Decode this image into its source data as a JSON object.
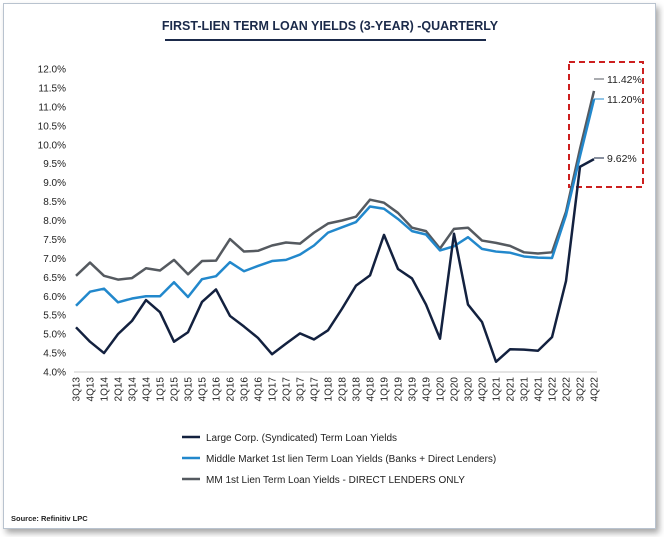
{
  "chart_data": {
    "type": "line",
    "title": "FIRST-LIEN TERM LOAN YIELDS (3-YEAR) -QUARTERLY",
    "source": "Source: Refinitiv LPC",
    "ylim": [
      4.0,
      12.0
    ],
    "yticks": [
      "4.0%",
      "4.5%",
      "5.0%",
      "5.5%",
      "6.0%",
      "6.5%",
      "7.0%",
      "7.5%",
      "8.0%",
      "8.5%",
      "9.0%",
      "9.5%",
      "10.0%",
      "10.5%",
      "11.0%",
      "11.5%",
      "12.0%"
    ],
    "categories": [
      "3Q13",
      "4Q13",
      "1Q14",
      "2Q14",
      "3Q14",
      "4Q14",
      "1Q15",
      "2Q15",
      "3Q15",
      "4Q15",
      "1Q16",
      "2Q16",
      "3Q16",
      "4Q16",
      "1Q17",
      "2Q17",
      "3Q17",
      "4Q17",
      "1Q18",
      "2Q18",
      "3Q18",
      "4Q18",
      "1Q19",
      "2Q19",
      "3Q19",
      "4Q19",
      "1Q20",
      "2Q20",
      "3Q20",
      "4Q20",
      "1Q21",
      "2Q21",
      "3Q21",
      "4Q21",
      "1Q22",
      "2Q22",
      "3Q22",
      "4Q22"
    ],
    "xtick_labels": [
      "3Q13",
      "4Q13",
      "1Q14",
      "2Q14",
      "3Q14",
      "4Q14",
      "1Q15",
      "2Q15",
      "3Q15",
      "4Q15",
      "1Q16",
      "2Q16",
      "3Q16",
      "4Q16",
      "1Q17",
      "2Q17",
      "3Q17",
      "4Q17",
      "1Q18",
      "2Q18",
      "3Q18",
      "4Q18",
      "1Q19",
      "2Q19",
      "3Q19",
      "4Q19",
      "1Q20",
      "2Q20",
      "3Q20",
      "4Q20",
      "1Q21",
      "2Q21",
      "3Q21",
      "4Q21",
      "1Q22",
      "2Q22",
      "3Q22",
      "4Q22"
    ],
    "series": [
      {
        "name": "Large Corp. (Syndicated) Term Loan Yields",
        "color": "#13213f",
        "values": [
          5.18,
          4.8,
          4.5,
          5.0,
          5.35,
          5.9,
          5.58,
          4.8,
          5.05,
          5.85,
          6.18,
          5.48,
          5.2,
          4.9,
          4.47,
          4.75,
          5.02,
          4.86,
          5.1,
          5.67,
          6.28,
          6.55,
          7.62,
          6.72,
          6.47,
          5.78,
          4.88,
          7.65,
          5.78,
          5.32,
          4.27,
          4.6,
          4.59,
          4.56,
          4.92,
          6.4,
          9.42,
          9.62
        ]
      },
      {
        "name": "Middle Market 1st lien Term Loan Yields (Banks + Direct Lenders)",
        "color": "#2288cc",
        "values": [
          5.75,
          6.12,
          6.2,
          5.84,
          5.94,
          6.0,
          6.0,
          6.37,
          5.98,
          6.45,
          6.53,
          6.9,
          6.66,
          6.8,
          6.93,
          6.96,
          7.1,
          7.34,
          7.68,
          7.82,
          7.96,
          8.37,
          8.31,
          8.04,
          7.72,
          7.63,
          7.21,
          7.32,
          7.56,
          7.25,
          7.18,
          7.15,
          7.05,
          7.02,
          7.01,
          8.14,
          9.7,
          11.2
        ]
      },
      {
        "name": "MM 1st Lien Term Loan Yields - DIRECT LENDERS ONLY",
        "color": "#555a60",
        "values": [
          6.54,
          6.89,
          6.54,
          6.44,
          6.48,
          6.74,
          6.68,
          6.96,
          6.58,
          6.93,
          6.94,
          7.51,
          7.18,
          7.2,
          7.34,
          7.42,
          7.39,
          7.68,
          7.92,
          8.0,
          8.1,
          8.55,
          8.47,
          8.2,
          7.81,
          7.72,
          7.26,
          7.78,
          7.81,
          7.47,
          7.41,
          7.33,
          7.16,
          7.13,
          7.16,
          8.23,
          9.89,
          11.42
        ]
      }
    ],
    "annotations": [
      "11.42%",
      "11.20%",
      "9.62%"
    ],
    "highlight_color": "#cc1f1f"
  }
}
